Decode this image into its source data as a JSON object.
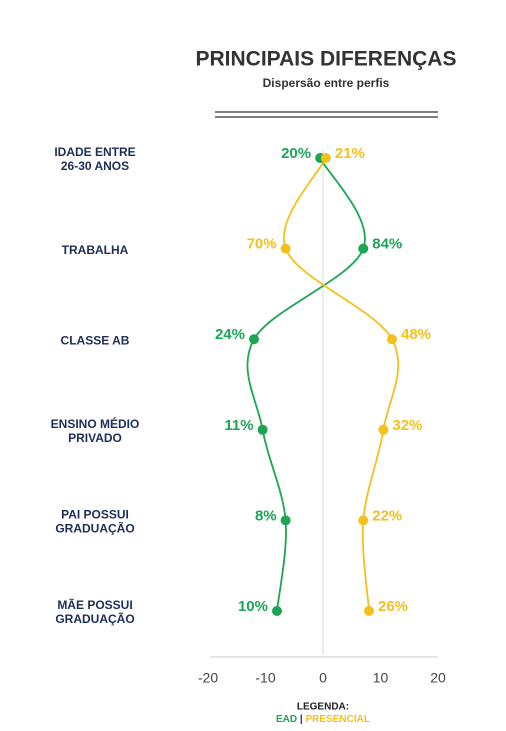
{
  "chart_data": {
    "type": "dispersion",
    "title": "PRINCIPAIS DIFERENÇAS",
    "subtitle": "Dispersão entre perfis",
    "categories": [
      [
        "IDADE ENTRE",
        "26-30 ANOS"
      ],
      [
        "TRABALHA"
      ],
      [
        "CLASSE AB"
      ],
      [
        "ENSINO MÉDIO",
        "PRIVADO"
      ],
      [
        "PAI POSSUI",
        "GRADUAÇÃO"
      ],
      [
        "MÃE POSSUI",
        "GRADUAÇÃO"
      ]
    ],
    "series": [
      {
        "name": "EAD",
        "color": "#1aa653",
        "x": [
          -0.5,
          7,
          -12,
          -10.5,
          -6.5,
          -8
        ],
        "values": [
          20,
          84,
          24,
          11,
          8,
          10
        ],
        "value_labels": [
          "20%",
          "84%",
          "24%",
          "11%",
          "8%",
          "10%"
        ]
      },
      {
        "name": "PRESENCIAL",
        "color": "#f6c01c",
        "x": [
          0.5,
          -6.5,
          12,
          10.5,
          7,
          8
        ],
        "values": [
          21,
          70,
          48,
          32,
          22,
          26
        ],
        "value_labels": [
          "21%",
          "70%",
          "48%",
          "32%",
          "22%",
          "26%"
        ]
      }
    ],
    "xlim": [
      -20,
      20
    ],
    "xticks": [
      -20,
      -10,
      0,
      10,
      20
    ],
    "legend_title": "LEGENDA:",
    "legend_separator": "|"
  }
}
